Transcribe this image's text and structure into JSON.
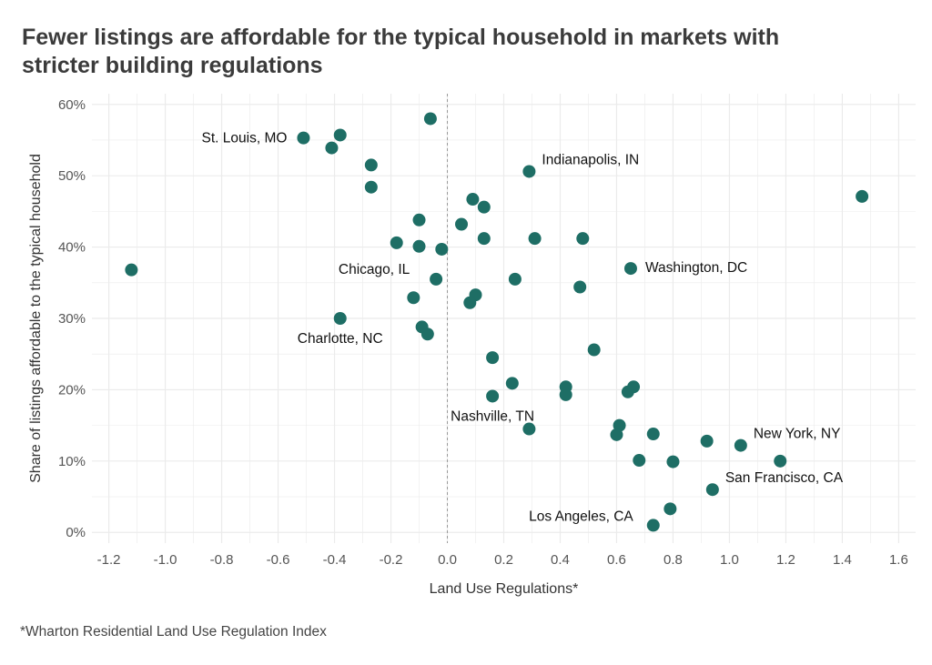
{
  "title_line1": "Fewer listings are affordable for the typical household in markets with",
  "title_line2": "stricter building regulations",
  "footnote": "*Wharton Residential Land Use Regulation Index",
  "colors": {
    "point": "#1e6e65",
    "grid": "#ebebeb",
    "zero_line": "#9a9a9a"
  },
  "chart_data": {
    "type": "scatter",
    "xlabel": "Land Use Regulations*",
    "ylabel": "Share of listings affordable to the typical household",
    "xlim": [
      -1.26,
      1.66
    ],
    "ylim": [
      -0.015,
      0.615
    ],
    "x_ticks": [
      -1.2,
      -1.0,
      -0.8,
      -0.6,
      -0.4,
      -0.2,
      0.0,
      0.2,
      0.4,
      0.6,
      0.8,
      1.0,
      1.2,
      1.4,
      1.6
    ],
    "x_tick_labels": [
      "-1.2",
      "-1.0",
      "-0.8",
      "-0.6",
      "-0.4",
      "-0.2",
      "0.0",
      "0.2",
      "0.4",
      "0.6",
      "0.8",
      "1.0",
      "1.2",
      "1.4",
      "1.6"
    ],
    "y_ticks": [
      0,
      0.1,
      0.2,
      0.3,
      0.4,
      0.5,
      0.6
    ],
    "y_tick_labels": [
      "0%",
      "10%",
      "20%",
      "30%",
      "40%",
      "50%",
      "60%"
    ],
    "vline_x": 0,
    "grid": true,
    "points": [
      {
        "x": -1.12,
        "y": 0.368,
        "label": ""
      },
      {
        "x": -0.51,
        "y": 0.553,
        "label": "St. Louis, MO",
        "label_pos": "left"
      },
      {
        "x": -0.38,
        "y": 0.557,
        "label": ""
      },
      {
        "x": -0.41,
        "y": 0.539,
        "label": ""
      },
      {
        "x": -0.27,
        "y": 0.515,
        "label": ""
      },
      {
        "x": -0.27,
        "y": 0.484,
        "label": ""
      },
      {
        "x": -0.06,
        "y": 0.58,
        "label": ""
      },
      {
        "x": 0.29,
        "y": 0.506,
        "label": "Indianapolis, IN",
        "label_pos": "right-up"
      },
      {
        "x": 1.47,
        "y": 0.471,
        "label": ""
      },
      {
        "x": 0.09,
        "y": 0.467,
        "label": ""
      },
      {
        "x": 0.13,
        "y": 0.456,
        "label": ""
      },
      {
        "x": -0.1,
        "y": 0.438,
        "label": ""
      },
      {
        "x": 0.05,
        "y": 0.432,
        "label": ""
      },
      {
        "x": -0.18,
        "y": 0.406,
        "label": ""
      },
      {
        "x": -0.1,
        "y": 0.401,
        "label": ""
      },
      {
        "x": -0.02,
        "y": 0.397,
        "label": "Chicago, IL",
        "label_pos": "below-left"
      },
      {
        "x": 0.13,
        "y": 0.412,
        "label": ""
      },
      {
        "x": 0.31,
        "y": 0.412,
        "label": ""
      },
      {
        "x": 0.48,
        "y": 0.412,
        "label": ""
      },
      {
        "x": 0.65,
        "y": 0.37,
        "label": "Washington, DC",
        "label_pos": "right"
      },
      {
        "x": -0.04,
        "y": 0.355,
        "label": ""
      },
      {
        "x": 0.24,
        "y": 0.355,
        "label": ""
      },
      {
        "x": 0.47,
        "y": 0.344,
        "label": ""
      },
      {
        "x": 0.1,
        "y": 0.333,
        "label": ""
      },
      {
        "x": 0.08,
        "y": 0.322,
        "label": ""
      },
      {
        "x": -0.12,
        "y": 0.329,
        "label": ""
      },
      {
        "x": -0.38,
        "y": 0.3,
        "label": "Charlotte, NC",
        "label_pos": "below"
      },
      {
        "x": -0.09,
        "y": 0.288,
        "label": ""
      },
      {
        "x": -0.07,
        "y": 0.278,
        "label": ""
      },
      {
        "x": 0.52,
        "y": 0.256,
        "label": ""
      },
      {
        "x": 0.16,
        "y": 0.245,
        "label": ""
      },
      {
        "x": 0.23,
        "y": 0.209,
        "label": ""
      },
      {
        "x": 0.42,
        "y": 0.204,
        "label": ""
      },
      {
        "x": 0.42,
        "y": 0.193,
        "label": ""
      },
      {
        "x": 0.16,
        "y": 0.191,
        "label": "Nashville, TN",
        "label_pos": "below"
      },
      {
        "x": 0.66,
        "y": 0.204,
        "label": ""
      },
      {
        "x": 0.64,
        "y": 0.197,
        "label": ""
      },
      {
        "x": 0.29,
        "y": 0.145,
        "label": ""
      },
      {
        "x": 0.61,
        "y": 0.15,
        "label": ""
      },
      {
        "x": 0.6,
        "y": 0.137,
        "label": ""
      },
      {
        "x": 0.73,
        "y": 0.138,
        "label": ""
      },
      {
        "x": 0.92,
        "y": 0.128,
        "label": ""
      },
      {
        "x": 1.04,
        "y": 0.122,
        "label": "New York, NY",
        "label_pos": "right-up"
      },
      {
        "x": 0.68,
        "y": 0.101,
        "label": ""
      },
      {
        "x": 0.8,
        "y": 0.099,
        "label": ""
      },
      {
        "x": 1.18,
        "y": 0.1,
        "label": ""
      },
      {
        "x": 0.94,
        "y": 0.06,
        "label": "San Francisco, CA",
        "label_pos": "right-up"
      },
      {
        "x": 0.79,
        "y": 0.033,
        "label": ""
      },
      {
        "x": 0.73,
        "y": 0.01,
        "label": "Los Angeles, CA",
        "label_pos": "left-up"
      }
    ]
  }
}
